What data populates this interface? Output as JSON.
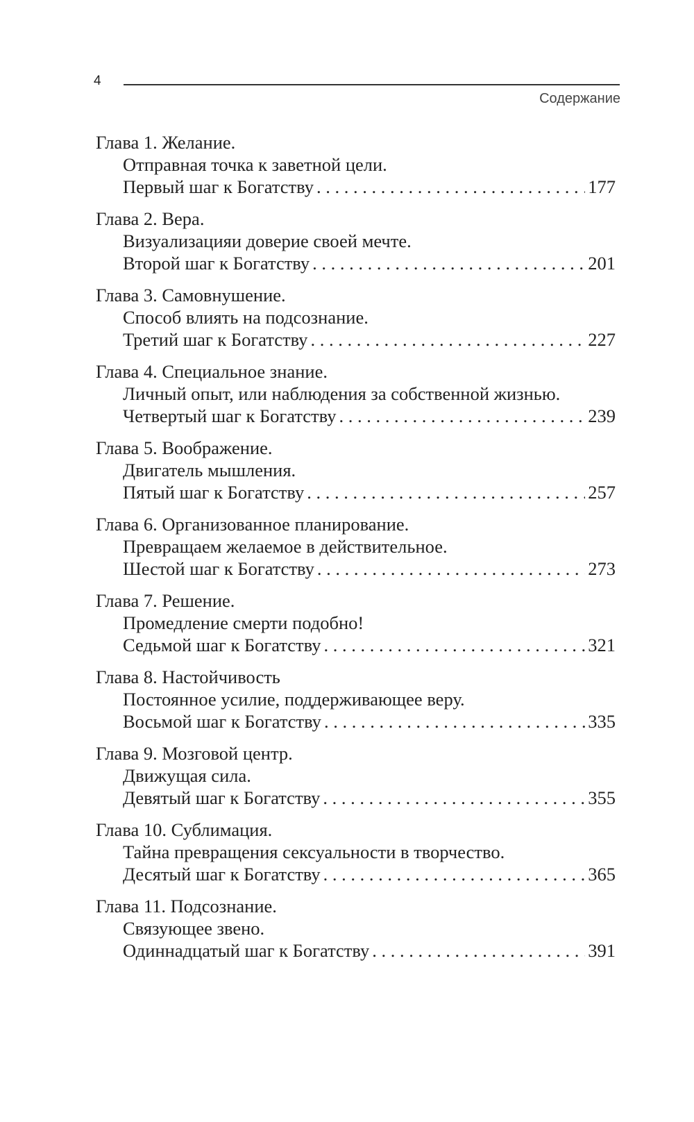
{
  "header": {
    "page_number": "4",
    "running_title": "Содержание"
  },
  "toc": [
    {
      "chapter": "Глава 1. Желание.",
      "subtitle": "Отправная точка к заветной цели.",
      "step": "Первый шаг к Богатству",
      "page": "177"
    },
    {
      "chapter": "Глава 2. Вера.",
      "subtitle": "Визуализацияи доверие своей мечте.",
      "step": "Второй шаг к Богатству",
      "page": "201"
    },
    {
      "chapter": "Глава 3. Самовнушение.",
      "subtitle": "Способ влиять на подсознание.",
      "step": "Третий шаг к Богатству",
      "page": "227"
    },
    {
      "chapter": "Глава 4. Специальное знание.",
      "subtitle": "Личный опыт, или наблюдения за собственной жизнью.",
      "step": "Четвертый шаг к Богатству",
      "page": "239"
    },
    {
      "chapter": "Глава 5. Воображение.",
      "subtitle": "Двигатель мышления.",
      "step": "Пятый шаг к Богатству",
      "page": "257"
    },
    {
      "chapter": "Глава 6. Организованное планирование.",
      "subtitle": "Превращаем желаемое в действительное.",
      "step": "Шестой шаг к Богатству",
      "page": "273"
    },
    {
      "chapter": "Глава 7. Решение.",
      "subtitle": "Промедление смерти подобно!",
      "step": "Седьмой шаг к Богатству",
      "page": "321"
    },
    {
      "chapter": "Глава 8. Настойчивость",
      "subtitle": "Постоянное усилие, поддерживающее веру.",
      "step": "Восьмой шаг к Богатству",
      "page": "335"
    },
    {
      "chapter": "Глава 9. Мозговой центр.",
      "subtitle": "Движущая сила.",
      "step": "Девятый шаг к Богатству",
      "page": "355"
    },
    {
      "chapter": "Глава 10. Сублимация.",
      "subtitle": "Тайна превращения сексуальности в творчество.",
      "step": "Десятый шаг к Богатству",
      "page": "365"
    },
    {
      "chapter": "Глава 11. Подсознание.",
      "subtitle": "Связующее звено.",
      "step": "Одиннадцатый шаг к Богатству",
      "page": "391"
    }
  ]
}
